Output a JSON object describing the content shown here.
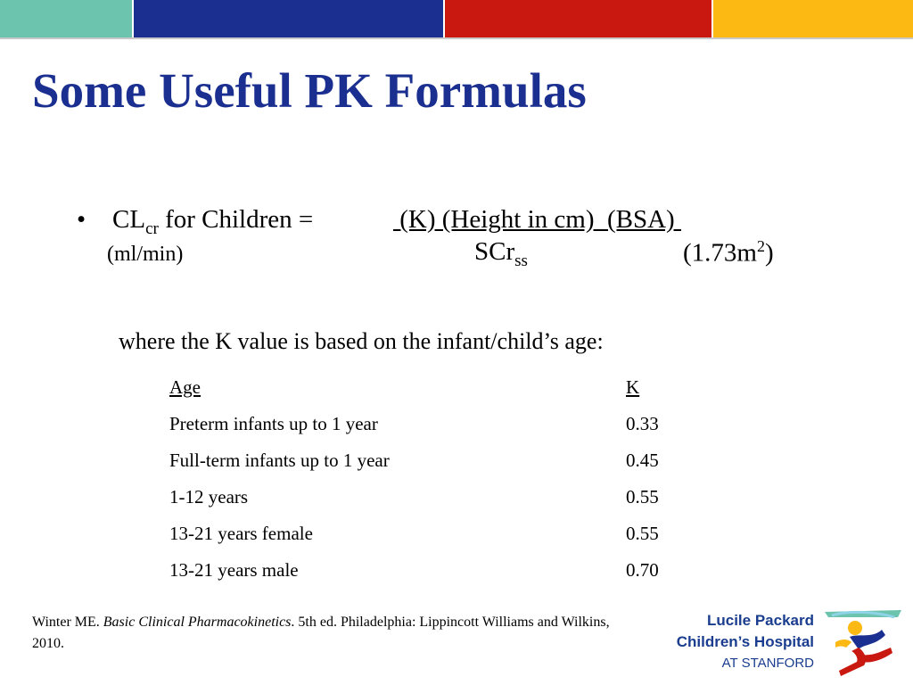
{
  "top_bar": {
    "colors": [
      "#6cc3ae",
      "#1a2f8f",
      "#c8180f",
      "#fcb914"
    ]
  },
  "title": "Some Useful PK Formulas",
  "formula": {
    "bullet": "•",
    "lhs_main": "CL",
    "lhs_sub": "cr",
    "lhs_rest": " for Children = ",
    "numerator": " (K) (Height in cm)  (BSA) ",
    "units": "(ml/min)",
    "denominator_main": "SCr",
    "denominator_sub": "ss",
    "bsa_base": "(1.73m",
    "bsa_sup": "2",
    "bsa_close": ")"
  },
  "note": "where the K value is based on the infant/child’s age:",
  "k_table": {
    "headers": {
      "age": "Age",
      "k": "K"
    },
    "rows": [
      {
        "age": "Preterm infants up to 1 year",
        "k": "0.33"
      },
      {
        "age": "Full-term infants up to 1 year",
        "k": "0.45"
      },
      {
        "age": "1-12 years",
        "k": "0.55"
      },
      {
        "age": "13-21 years female",
        "k": "0.55"
      },
      {
        "age": "13-21 years male",
        "k": "0.70"
      }
    ]
  },
  "reference": {
    "prefix": "Winter ME. ",
    "book": "Basic Clinical Pharmacokinetics",
    "suffix": ". 5th ed. Philadelphia: Lippincott Williams and Wilkins, 2010."
  },
  "logo": {
    "line1": "Lucile Packard",
    "line2": "Children’s Hospital",
    "line3": "AT STANFORD"
  }
}
